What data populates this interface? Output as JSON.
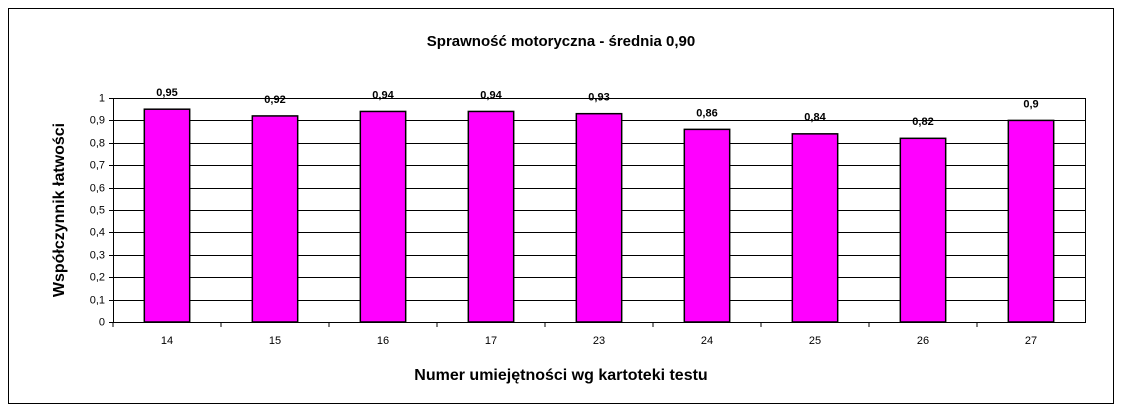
{
  "chart_data": {
    "type": "bar",
    "title": "Sprawność motoryczna - średnia 0,90",
    "x_label": "Numer umiejętności wg kartoteki testu",
    "y_label": "Współczynnik łatwości",
    "categories": [
      "14",
      "15",
      "16",
      "17",
      "23",
      "24",
      "25",
      "26",
      "27"
    ],
    "values": [
      0.95,
      0.92,
      0.94,
      0.94,
      0.93,
      0.86,
      0.84,
      0.82,
      0.9
    ],
    "value_labels": [
      "0,95",
      "0,92",
      "0,94",
      "0,94",
      "0,93",
      "0,86",
      "0,84",
      "0,82",
      "0,9"
    ],
    "color": "#ff00ff",
    "ylim": [
      0,
      1
    ],
    "yticks": [
      0,
      {
        "value": 0.1,
        "label": "0,1"
      },
      {
        "value": 0.2,
        "label": "0,2"
      },
      {
        "value": 0.3,
        "label": "0,3"
      },
      {
        "value": 0.4,
        "label": "0,4"
      },
      {
        "value": 0.5,
        "label": "0,5"
      },
      {
        "value": 0.6,
        "label": "0,6"
      },
      {
        "value": 0.7,
        "label": "0,7"
      },
      {
        "value": 0.8,
        "label": "0,8"
      },
      {
        "value": 0.9,
        "label": "0,9"
      },
      1
    ],
    "grid": true
  }
}
